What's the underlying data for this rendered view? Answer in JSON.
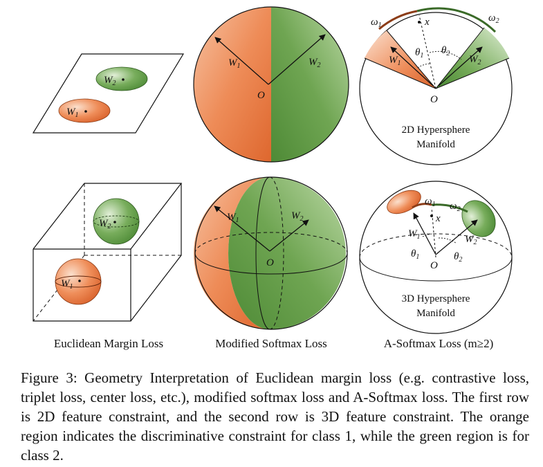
{
  "colors": {
    "orange": "#e6703a",
    "green": "#5c9a42",
    "orange_light": "#f8d4bd",
    "green_light": "#c6e0b2",
    "arc_brown": "#9a4a22",
    "arc_green": "#3b6e2a"
  },
  "labels": {
    "w1": "W",
    "w2": "W",
    "s1": "1",
    "s2": "2",
    "o": "O",
    "x": "x",
    "omega": "ω",
    "theta": "θ"
  },
  "manifold_2d": [
    "2D Hypersphere",
    "Manifold"
  ],
  "manifold_3d": [
    "3D Hypersphere",
    "Manifold"
  ],
  "columns": [
    "Euclidean Margin Loss",
    "Modified Softmax Loss",
    "A-Softmax Loss (m≥2)"
  ],
  "caption": "Figure 3: Geometry Interpretation of Euclidean margin loss (e.g. contrastive loss, triplet loss, center loss, etc.), modified softmax loss and A-Softmax loss. The first row is 2D feature constraint, and the second row is 3D feature constraint. The orange region indicates the discriminative constraint for class 1, while the green region is for class 2."
}
